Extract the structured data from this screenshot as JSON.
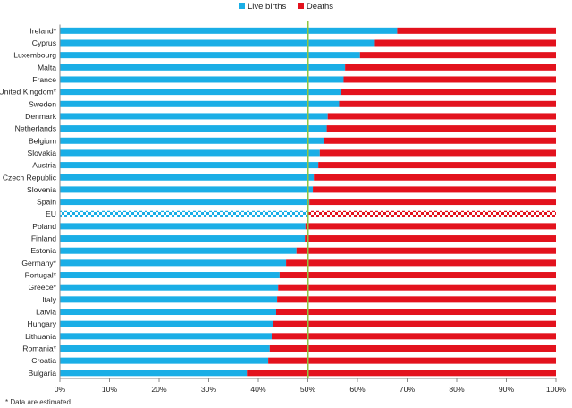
{
  "chart_data": {
    "type": "bar",
    "orientation": "horizontal",
    "stacked": true,
    "percent_stacked": true,
    "categories": [
      "Ireland*",
      "Cyprus",
      "Luxembourg",
      "Malta",
      "France",
      "United Kingdom*",
      "Sweden",
      "Denmark",
      "Netherlands",
      "Belgium",
      "Slovakia",
      "Austria",
      "Czech Republic",
      "Slovenia",
      "Spain",
      "EU",
      "Poland",
      "Finland",
      "Estonia",
      "Germany*",
      "Portugal*",
      "Greece*",
      "Italy",
      "Latvia",
      "Hungary",
      "Lithuania",
      "Romania*",
      "Croatia",
      "Bulgaria"
    ],
    "series": [
      {
        "name": "Live births",
        "color": "#1aaee6",
        "values": [
          68,
          63.5,
          60.5,
          57.5,
          57.2,
          56.7,
          56.3,
          54,
          53.8,
          53.2,
          52.4,
          52.1,
          51.2,
          51,
          50.3,
          50,
          49.5,
          49.4,
          47.7,
          45.6,
          44.3,
          44,
          43.8,
          43.6,
          42.9,
          42.7,
          42.3,
          42,
          37.7
        ]
      },
      {
        "name": "Deaths",
        "color": "#e3121d",
        "values": [
          32,
          36.5,
          39.5,
          42.5,
          42.8,
          43.3,
          43.7,
          46,
          46.2,
          46.8,
          47.6,
          47.9,
          48.8,
          49,
          49.7,
          50,
          50.5,
          50.6,
          52.3,
          54.4,
          55.7,
          56,
          56.2,
          56.4,
          57.1,
          57.3,
          57.7,
          58,
          62.3
        ]
      }
    ],
    "highlighted_category": "EU",
    "highlight_style": "checkered",
    "reference_line": {
      "value": 50,
      "color": "#8dc63f"
    },
    "xlim": [
      0,
      100
    ],
    "x_ticks": [
      "0%",
      "10%",
      "20%",
      "30%",
      "40%",
      "50%",
      "60%",
      "70%",
      "80%",
      "90%",
      "100%"
    ],
    "legend_position": "top-center",
    "grid": false
  },
  "footnote": "* Data are estimated"
}
